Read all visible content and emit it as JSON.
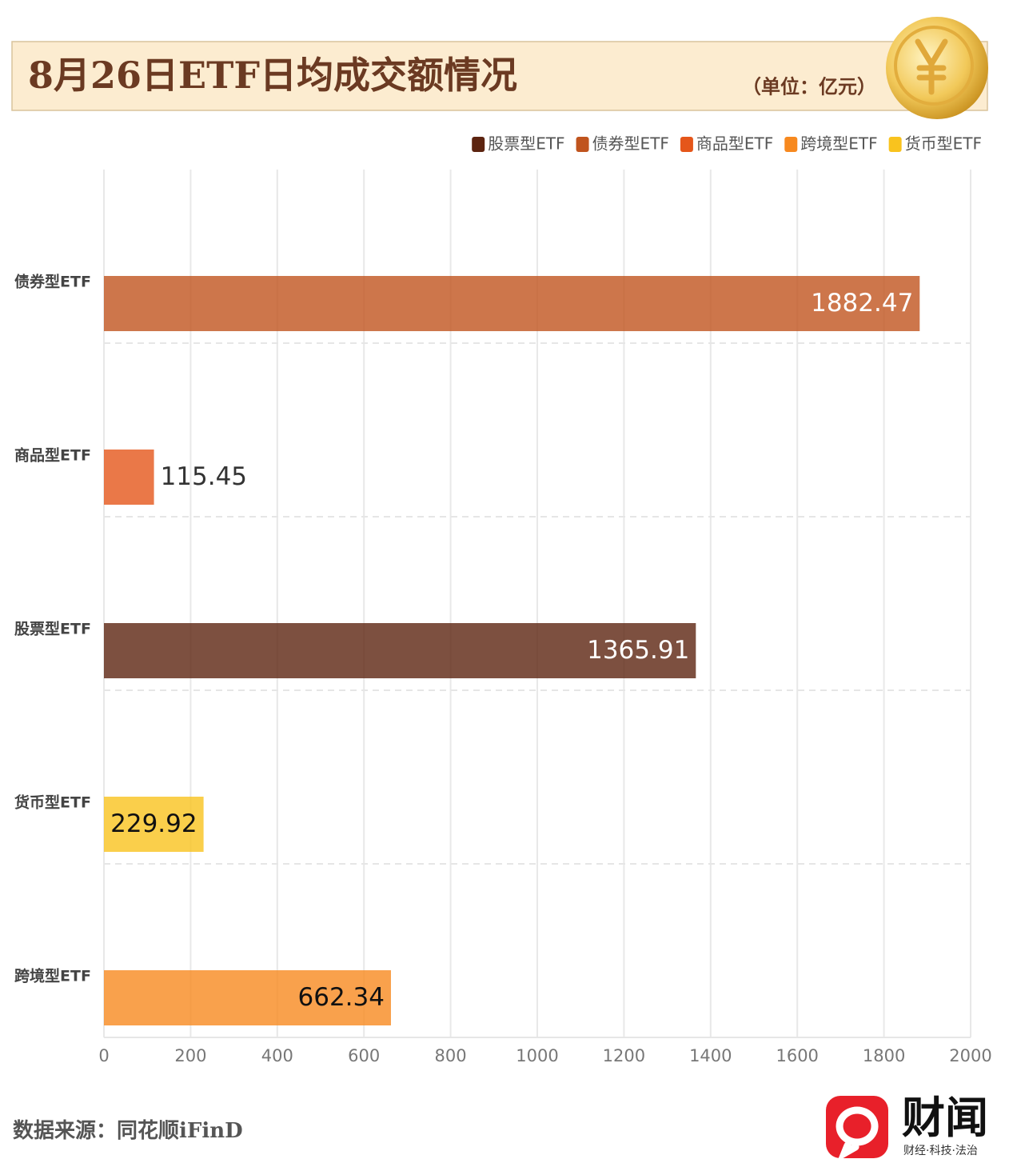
{
  "chart_data": {
    "type": "bar",
    "orientation": "horizontal",
    "title": "8月26日ETF日均成交额情况",
    "unit": "（单位：亿元）",
    "source": "数据来源：同花顺iFinD",
    "brand": {
      "name": "财闻",
      "tagline": "财经·科技·法治"
    },
    "categories": [
      "债券型ETF",
      "商品型ETF",
      "股票型ETF",
      "货币型ETF",
      "跨境型ETF"
    ],
    "series": [
      {
        "name": "股票型ETF",
        "color": "#5c2410",
        "values": [
          null,
          null,
          1365.91,
          null,
          null
        ]
      },
      {
        "name": "债券型ETF",
        "color": "#c0541e",
        "values": [
          1882.47,
          null,
          null,
          null,
          null
        ]
      },
      {
        "name": "商品型ETF",
        "color": "#e5561a",
        "values": [
          null,
          115.45,
          null,
          null,
          null
        ]
      },
      {
        "name": "跨境型ETF",
        "color": "#f7891f",
        "values": [
          null,
          null,
          null,
          null,
          662.34
        ]
      },
      {
        "name": "货币型ETF",
        "color": "#f9c31e",
        "values": [
          null,
          null,
          null,
          229.92,
          null
        ]
      }
    ],
    "xlim": [
      0,
      2000
    ],
    "xticks": [
      0,
      200,
      400,
      600,
      800,
      1000,
      1200,
      1400,
      1600,
      1800,
      2000
    ],
    "grid": true,
    "legend": "top-right"
  }
}
